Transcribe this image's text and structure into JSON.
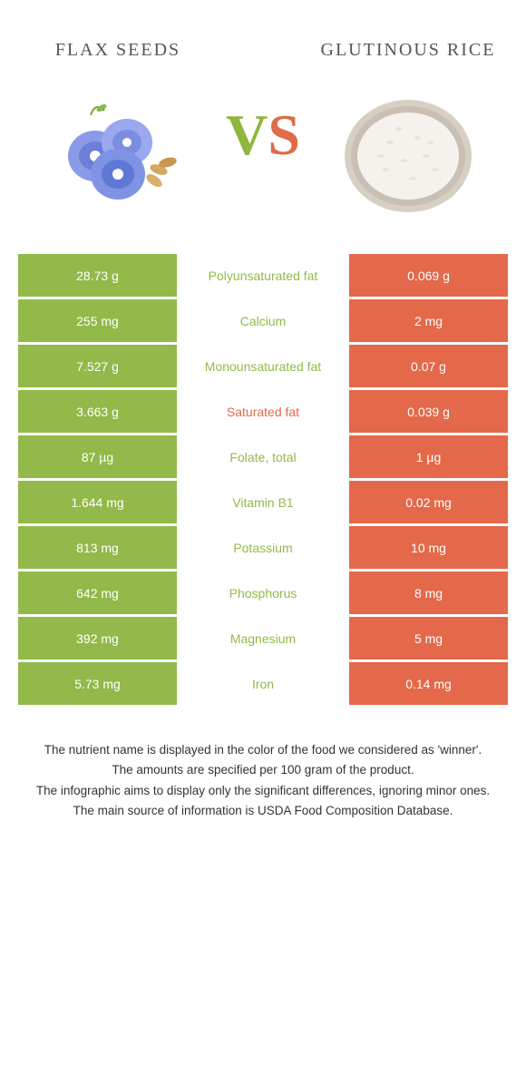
{
  "colors": {
    "left": "#93b94a",
    "right": "#e4684a",
    "mid_bg": "#ffffff"
  },
  "food_left": {
    "title": "flax seeds"
  },
  "food_right": {
    "title": "glutinous rice"
  },
  "vs": {
    "v": "V",
    "s": "S"
  },
  "rows": [
    {
      "left": "28.73 g",
      "mid": "Polyunsaturated fat",
      "right": "0.069 g",
      "winner": "left"
    },
    {
      "left": "255 mg",
      "mid": "Calcium",
      "right": "2 mg",
      "winner": "left"
    },
    {
      "left": "7.527 g",
      "mid": "Monounsaturated fat",
      "right": "0.07 g",
      "winner": "left"
    },
    {
      "left": "3.663 g",
      "mid": "Saturated fat",
      "right": "0.039 g",
      "winner": "right"
    },
    {
      "left": "87 µg",
      "mid": "Folate, total",
      "right": "1 µg",
      "winner": "left"
    },
    {
      "left": "1.644 mg",
      "mid": "Vitamin B1",
      "right": "0.02 mg",
      "winner": "left"
    },
    {
      "left": "813 mg",
      "mid": "Potassium",
      "right": "10 mg",
      "winner": "left"
    },
    {
      "left": "642 mg",
      "mid": "Phosphorus",
      "right": "8 mg",
      "winner": "left"
    },
    {
      "left": "392 mg",
      "mid": "Magnesium",
      "right": "5 mg",
      "winner": "left"
    },
    {
      "left": "5.73 mg",
      "mid": "Iron",
      "right": "0.14 mg",
      "winner": "left"
    }
  ],
  "footnotes": [
    "The nutrient name is displayed in the color of the food we considered as 'winner'.",
    "The amounts are specified per 100 gram of the product.",
    "The infographic aims to display only the significant differences, ignoring minor ones.",
    "The main source of information is USDA Food Composition Database."
  ]
}
